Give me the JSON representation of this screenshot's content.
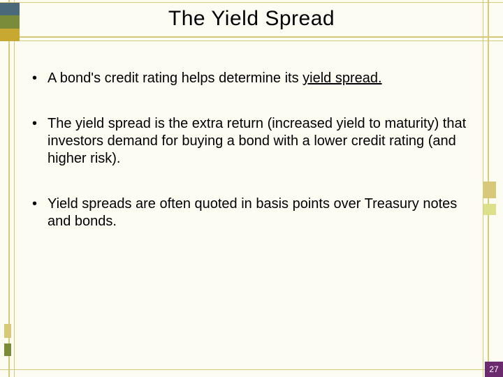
{
  "title": "The Yield Spread",
  "bullets": [
    {
      "pre": "A bond's credit rating helps determine its ",
      "u": "yield spread.",
      "post": ""
    },
    {
      "pre": "The yield spread is the extra return (increased yield to maturity) that investors demand for buying a bond with a lower credit rating (and higher risk).",
      "u": "",
      "post": ""
    },
    {
      "pre": "Yield spreads are often quoted in basis points over Treasury notes and bonds.",
      "u": "",
      "post": ""
    }
  ],
  "page_number": "27",
  "colors": {
    "frame": "#d8c97a",
    "bg": "#fdfcf3",
    "accent_purple": "#6b2a6e",
    "deco_teal": "#4a6a7a",
    "deco_olive": "#7a8c3a",
    "deco_gold": "#c9a832"
  }
}
